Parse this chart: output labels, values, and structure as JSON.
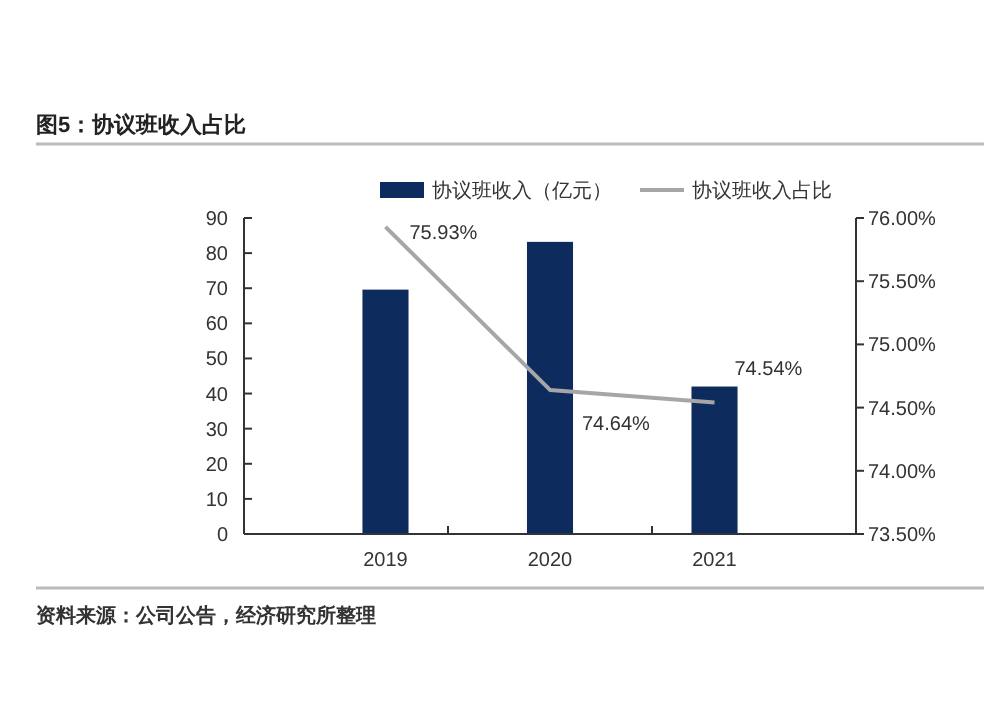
{
  "chart_data": {
    "type": "bar",
    "title": "图5：协议班收入占比",
    "categories": [
      "2019",
      "2020",
      "2021"
    ],
    "series": [
      {
        "name": "协议班收入（亿元）",
        "color": "#0d2b5c",
        "values": [
          69.6,
          83.2,
          42
        ]
      },
      {
        "name": "协议班收入占比",
        "type": "line",
        "axis": "y2",
        "color": "#a6a6a6",
        "values": [
          75.93,
          74.64,
          74.54
        ],
        "value_labels": [
          "75.93%",
          "74.64%",
          "74.54%"
        ]
      }
    ],
    "ylim": [
      0,
      90
    ],
    "yticks": [
      0,
      10,
      20,
      30,
      40,
      50,
      60,
      70,
      80,
      90
    ],
    "y2lim": [
      73.5,
      76
    ],
    "y2ticks": [
      {
        "value": 73.5,
        "label": "73.50%"
      },
      {
        "value": 74,
        "label": "74.00%"
      },
      {
        "value": 74.5,
        "label": "74.50%"
      },
      {
        "value": 75,
        "label": "75.00%"
      },
      {
        "value": 75.5,
        "label": "75.50%"
      },
      {
        "value": 76,
        "label": "76.00%"
      }
    ],
    "legend": "top",
    "grid": false,
    "marker": "none",
    "annotations": [
      "资料来源：公司公告，经济研究所整理"
    ]
  }
}
